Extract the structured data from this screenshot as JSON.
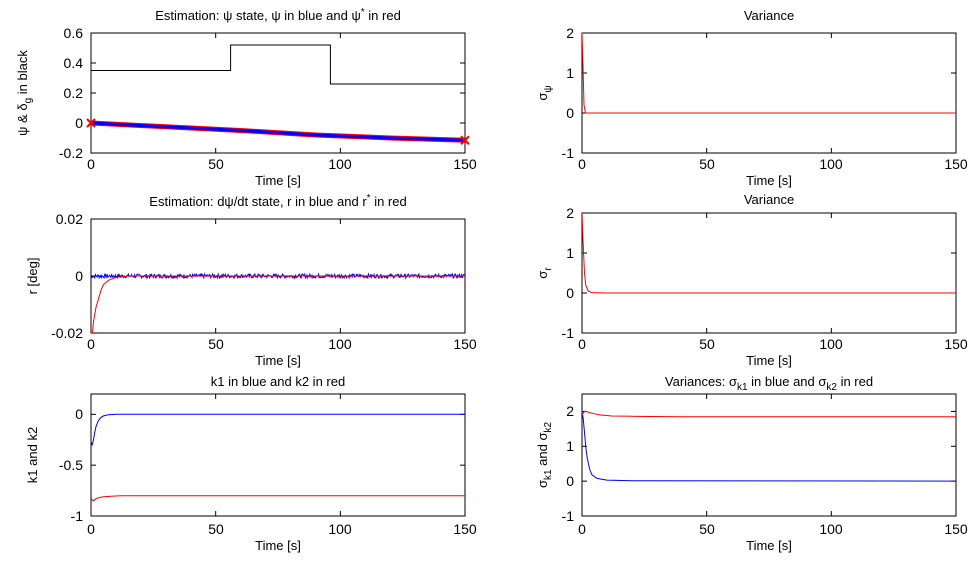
{
  "chart_data": [
    {
      "type": "line",
      "title": "Estimation: ψ state, ψ in blue and ψ* in red",
      "xlabel": "Time [s]",
      "ylabel": "ψ & δg in black",
      "xlim": [
        0,
        150
      ],
      "ylim": [
        -0.2,
        0.6
      ],
      "xticks": [
        "0",
        "50",
        "100",
        "150"
      ],
      "yticks": [
        "-0.2",
        "0",
        "0.2",
        "0.4",
        "0.6"
      ],
      "series": [
        {
          "color": "#000000",
          "width": 1,
          "x": [
            0,
            56,
            56,
            96,
            96,
            150
          ],
          "y": [
            0.35,
            0.35,
            0.52,
            0.52,
            0.26,
            0.26
          ]
        },
        {
          "color": "#ff0000",
          "width": 5,
          "x": [
            0,
            30,
            60,
            90,
            120,
            150
          ],
          "y": [
            0.0,
            -0.025,
            -0.05,
            -0.08,
            -0.1,
            -0.115
          ]
        },
        {
          "color": "#0000ff",
          "width": 3,
          "x": [
            0,
            30,
            60,
            90,
            120,
            150
          ],
          "y": [
            0.0,
            -0.025,
            -0.05,
            -0.08,
            -0.1,
            -0.115
          ]
        }
      ],
      "markers": [
        {
          "x": 0,
          "y": 0,
          "color": "#ff0000"
        },
        {
          "x": 150,
          "y": -0.115,
          "color": "#ff0000"
        }
      ]
    },
    {
      "type": "line",
      "title": "Variance",
      "xlabel": "Time [s]",
      "ylabel": "σψ",
      "xlim": [
        0,
        150
      ],
      "ylim": [
        -1,
        2
      ],
      "xticks": [
        "0",
        "50",
        "100",
        "150"
      ],
      "yticks": [
        "-1",
        "0",
        "1",
        "2"
      ],
      "series": [
        {
          "color": "#ff0000",
          "width": 1,
          "x": [
            0,
            0.4,
            0.8,
            1.4,
            150
          ],
          "y": [
            2,
            1.2,
            0.2,
            0,
            0
          ]
        }
      ]
    },
    {
      "type": "line",
      "title": "Estimation: dψ/dt state, r in blue and r* in red",
      "xlabel": "Time [s]",
      "ylabel": "r [deg]",
      "xlim": [
        0,
        150
      ],
      "ylim": [
        -0.02,
        0.02
      ],
      "xticks": [
        "0",
        "50",
        "100",
        "150"
      ],
      "yticks": [
        "-0.02",
        "0",
        "0.02"
      ],
      "series": [
        {
          "color": "#0000ff",
          "width": 1,
          "noise": 0.0007,
          "x": [
            0,
            150
          ],
          "y": [
            0,
            0
          ]
        },
        {
          "color": "#ff0000",
          "width": 1,
          "x": [
            0,
            0.6,
            1,
            2,
            3,
            4,
            5,
            7,
            10,
            15,
            150
          ],
          "y": [
            -0.02,
            -0.02,
            -0.016,
            -0.011,
            -0.008,
            -0.005,
            -0.003,
            -0.0015,
            -0.0005,
            0,
            0
          ]
        }
      ]
    },
    {
      "type": "line",
      "title": "Variance",
      "xlabel": "Time [s]",
      "ylabel": "σr",
      "xlim": [
        0,
        150
      ],
      "ylim": [
        -1,
        2
      ],
      "xticks": [
        "0",
        "50",
        "100",
        "150"
      ],
      "yticks": [
        "-1",
        "0",
        "1",
        "2"
      ],
      "series": [
        {
          "color": "#ff0000",
          "width": 1,
          "x": [
            0,
            0.5,
            1,
            1.5,
            2.5,
            4,
            10,
            150
          ],
          "y": [
            2,
            1.2,
            0.5,
            0.2,
            0.05,
            0.01,
            0,
            0
          ]
        }
      ]
    },
    {
      "type": "line",
      "title": "k1 in blue and k2 in red",
      "xlabel": "Time [s]",
      "ylabel": "k1 and k2",
      "xlim": [
        0,
        150
      ],
      "ylim": [
        -1,
        0.2
      ],
      "xticks": [
        "0",
        "50",
        "100",
        "150"
      ],
      "yticks": [
        "-1",
        "-0.5",
        "0"
      ],
      "series": [
        {
          "color": "#0000ff",
          "width": 1,
          "x": [
            0,
            0.5,
            1,
            1.5,
            2,
            3,
            4,
            5,
            7,
            10,
            150
          ],
          "y": [
            -0.27,
            -0.3,
            -0.25,
            -0.18,
            -0.12,
            -0.06,
            -0.03,
            -0.015,
            -0.005,
            0,
            0
          ]
        },
        {
          "color": "#ff0000",
          "width": 1,
          "x": [
            0,
            1,
            2,
            3,
            5,
            8,
            12,
            150
          ],
          "y": [
            -0.83,
            -0.85,
            -0.83,
            -0.82,
            -0.81,
            -0.805,
            -0.8,
            -0.8
          ]
        }
      ]
    },
    {
      "type": "line",
      "title": "Variances: σk1 in blue and σk2 in red",
      "xlabel": "Time [s]",
      "ylabel": "σk1 and σk2",
      "xlim": [
        0,
        150
      ],
      "ylim": [
        -1,
        2.5
      ],
      "xticks": [
        "0",
        "50",
        "100",
        "150"
      ],
      "yticks": [
        "-1",
        "0",
        "1",
        "2"
      ],
      "series": [
        {
          "color": "#0000ff",
          "width": 1,
          "x": [
            0,
            0.5,
            1,
            1.5,
            2,
            3,
            4,
            6,
            10,
            20,
            150
          ],
          "y": [
            2.0,
            1.8,
            1.4,
            1.0,
            0.7,
            0.35,
            0.18,
            0.08,
            0.03,
            0.01,
            0
          ]
        },
        {
          "color": "#ff0000",
          "width": 1,
          "x": [
            0,
            1,
            2,
            4,
            7,
            12,
            20,
            40,
            150
          ],
          "y": [
            1.9,
            2.0,
            1.99,
            1.95,
            1.9,
            1.87,
            1.86,
            1.85,
            1.85
          ]
        }
      ]
    }
  ]
}
